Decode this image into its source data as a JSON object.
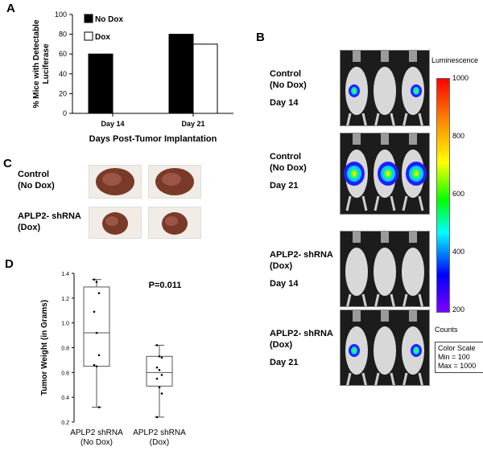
{
  "panels": {
    "a": "A",
    "b": "B",
    "c": "C",
    "d": "D"
  },
  "chart_data": [
    {
      "type": "bar",
      "categories": [
        "Day 14",
        "Day 21"
      ],
      "series": [
        {
          "name": "No Dox",
          "values": [
            60,
            80
          ],
          "color": "#000000"
        },
        {
          "name": "Dox",
          "values": [
            0,
            70
          ],
          "color": "#ffffff"
        }
      ],
      "xlabel": "Days Post-Tumor Implantation",
      "ylabel_lines": [
        "% Mice with Detectable",
        "Luciferase"
      ],
      "ylim": [
        0,
        100
      ],
      "yticks": [
        0,
        20,
        40,
        60,
        80,
        100
      ],
      "legend": "top-left"
    },
    {
      "type": "box",
      "categories": [
        "APLP2 shRNA (No Dox)",
        "APLP2 shRNA (Dox)"
      ],
      "category_lines": [
        [
          "APLP2 shRNA",
          "(No Dox)"
        ],
        [
          "APLP2 shRNA",
          "(Dox)"
        ]
      ],
      "ylabel": "Tumor Weight (in Grams)",
      "ylim": [
        0.2,
        1.4
      ],
      "yticks": [
        "0.2",
        "0.4",
        "0.6",
        "0.8",
        "1.0",
        "1.2",
        "1.4"
      ],
      "annotation": "P=0.011",
      "boxes": [
        {
          "min": 0.32,
          "q1": 0.65,
          "median": 0.92,
          "q3": 1.29,
          "max": 1.35,
          "points": [
            1.35,
            1.33,
            1.24,
            1.09,
            0.92,
            0.74,
            0.66,
            0.65,
            0.32
          ]
        },
        {
          "min": 0.24,
          "q1": 0.49,
          "median": 0.6,
          "q3": 0.73,
          "max": 0.82,
          "points": [
            0.82,
            0.73,
            0.72,
            0.64,
            0.62,
            0.58,
            0.55,
            0.48,
            0.43,
            0.24
          ]
        }
      ]
    }
  ],
  "panel_b": {
    "rows": [
      {
        "lines": [
          "Control",
          "(No Dox)",
          "Day 14"
        ],
        "signal": "small"
      },
      {
        "lines": [
          "Control",
          "(No Dox)",
          "Day 21"
        ],
        "signal": "large"
      },
      {
        "lines": [
          "APLP2- shRNA",
          "(Dox)",
          "Day 14"
        ],
        "signal": "none"
      },
      {
        "lines": [
          "APLP2- shRNA",
          "(Dox)",
          "Day 21"
        ],
        "signal": "small"
      }
    ],
    "scale": {
      "title": "Luminescence",
      "ticks": [
        "1000",
        "800",
        "600",
        "400",
        "200"
      ],
      "unit": "Counts",
      "box_lines": [
        "Color Scale",
        "Min = 100",
        "Max = 1000"
      ]
    }
  },
  "panel_c": {
    "rows": [
      {
        "lines": [
          "Control",
          "(No Dox)"
        ],
        "tissue": "large"
      },
      {
        "lines": [
          "APLP2- shRNA",
          "(Dox)"
        ],
        "tissue": "small"
      }
    ]
  }
}
